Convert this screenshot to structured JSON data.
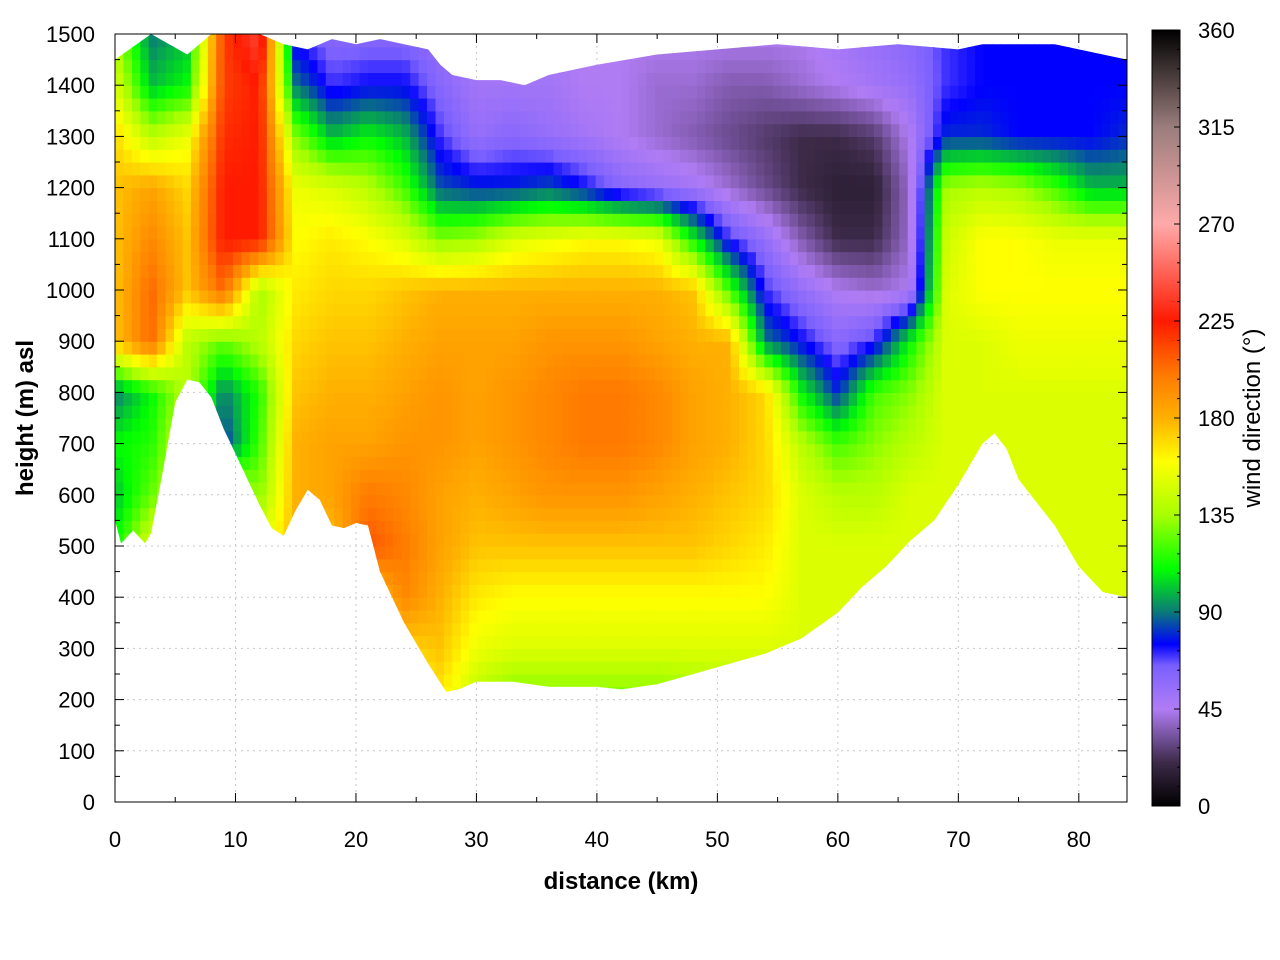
{
  "chart_data": {
    "type": "heatmap",
    "title": "",
    "xlabel": "distance (km)",
    "ylabel": "height (m) asl",
    "colorbar_label": "wind direction (°)",
    "xlim": [
      0,
      84
    ],
    "ylim": [
      0,
      1500
    ],
    "x_ticks": [
      0,
      10,
      20,
      30,
      40,
      50,
      60,
      70,
      80
    ],
    "y_ticks": [
      0,
      100,
      200,
      300,
      400,
      500,
      600,
      700,
      800,
      900,
      1000,
      1100,
      1200,
      1300,
      1400,
      1500
    ],
    "colorbar_range": [
      0,
      360
    ],
    "colorbar_ticks": [
      0,
      45,
      90,
      135,
      180,
      225,
      270,
      315,
      360
    ],
    "grid": true,
    "colormap": [
      [
        0,
        "#000000"
      ],
      [
        20,
        "#3c2a48"
      ],
      [
        45,
        "#b07cf4"
      ],
      [
        65,
        "#7a60ff"
      ],
      [
        75,
        "#0000ff"
      ],
      [
        90,
        "#0a7a78"
      ],
      [
        110,
        "#00ff00"
      ],
      [
        135,
        "#a8ff00"
      ],
      [
        160,
        "#ffff00"
      ],
      [
        180,
        "#ffb000"
      ],
      [
        200,
        "#ff7a00"
      ],
      [
        225,
        "#ff1a00"
      ],
      [
        270,
        "#ffaaaa"
      ],
      [
        315,
        "#9a7d7d"
      ],
      [
        360,
        "#000000"
      ]
    ],
    "terrain": {
      "x": [
        0,
        0.5,
        1.5,
        2.5,
        3,
        4,
        5,
        6,
        7,
        8,
        9,
        10,
        11,
        12,
        13,
        14,
        15,
        16,
        17,
        18,
        19,
        20,
        21,
        22,
        24,
        26,
        27.5,
        28.5,
        30,
        33,
        36,
        40,
        42,
        45,
        48,
        51,
        54,
        57,
        60,
        62,
        64,
        66,
        68,
        70,
        71,
        72,
        73,
        74,
        75,
        76,
        78,
        80,
        82,
        84
      ],
      "y": [
        550,
        505,
        530,
        505,
        525,
        650,
        780,
        825,
        820,
        790,
        730,
        680,
        630,
        580,
        535,
        520,
        570,
        610,
        590,
        540,
        535,
        545,
        540,
        450,
        350,
        270,
        215,
        220,
        235,
        235,
        225,
        225,
        220,
        230,
        250,
        270,
        290,
        320,
        370,
        420,
        460,
        510,
        550,
        620,
        660,
        700,
        720,
        690,
        630,
        600,
        540,
        460,
        410,
        400
      ]
    },
    "top": {
      "x": [
        0,
        3,
        6,
        8,
        12,
        14,
        16,
        18,
        20,
        22,
        24,
        26,
        27,
        28,
        30,
        32,
        34,
        36,
        40,
        45,
        50,
        55,
        60,
        65,
        70,
        72,
        74,
        76,
        78,
        80,
        82,
        84
      ],
      "y": [
        1450,
        1500,
        1460,
        1500,
        1500,
        1480,
        1470,
        1490,
        1480,
        1490,
        1480,
        1470,
        1440,
        1420,
        1410,
        1410,
        1400,
        1420,
        1440,
        1460,
        1470,
        1480,
        1470,
        1480,
        1470,
        1480,
        1480,
        1480,
        1480,
        1470,
        1460,
        1450
      ]
    },
    "direction_field": {
      "x": [
        0,
        3,
        6,
        9,
        12,
        15,
        18,
        21,
        24,
        27,
        30,
        33,
        36,
        39,
        42,
        45,
        48,
        51,
        54,
        57,
        60,
        63,
        66,
        69,
        72,
        75,
        78,
        81,
        84
      ],
      "y": [
        200,
        300,
        400,
        500,
        600,
        700,
        800,
        900,
        1000,
        1100,
        1200,
        1300,
        1400,
        1500
      ],
      "values_deg": [
        [
          150,
          150,
          150,
          150,
          150,
          150,
          150,
          150,
          150,
          165,
          140,
          125,
          125,
          125,
          125,
          125,
          130,
          135,
          140,
          140,
          140,
          145,
          150,
          150,
          150,
          150,
          150,
          150,
          150
        ],
        [
          150,
          150,
          150,
          150,
          150,
          150,
          150,
          150,
          170,
          175,
          155,
          150,
          150,
          150,
          150,
          150,
          150,
          150,
          150,
          150,
          150,
          150,
          150,
          150,
          150,
          150,
          150,
          150,
          150
        ],
        [
          150,
          150,
          150,
          150,
          150,
          150,
          150,
          170,
          195,
          180,
          165,
          160,
          160,
          160,
          160,
          160,
          160,
          160,
          160,
          150,
          150,
          150,
          150,
          150,
          150,
          150,
          150,
          150,
          150
        ],
        [
          110,
          150,
          150,
          150,
          150,
          180,
          175,
          210,
          200,
          185,
          175,
          175,
          175,
          175,
          175,
          175,
          175,
          170,
          165,
          150,
          150,
          150,
          150,
          150,
          150,
          150,
          150,
          150,
          150
        ],
        [
          100,
          125,
          150,
          150,
          130,
          180,
          185,
          200,
          195,
          185,
          180,
          185,
          190,
          190,
          190,
          185,
          180,
          175,
          170,
          150,
          140,
          140,
          150,
          150,
          150,
          150,
          150,
          150,
          150
        ],
        [
          110,
          115,
          150,
          80,
          120,
          180,
          185,
          185,
          190,
          190,
          185,
          190,
          195,
          200,
          200,
          195,
          185,
          180,
          170,
          140,
          120,
          130,
          140,
          150,
          150,
          150,
          150,
          150,
          150
        ],
        [
          90,
          110,
          140,
          90,
          115,
          175,
          180,
          180,
          185,
          190,
          185,
          190,
          195,
          200,
          200,
          195,
          185,
          180,
          170,
          110,
          80,
          120,
          130,
          150,
          150,
          150,
          150,
          150,
          150
        ],
        [
          175,
          205,
          140,
          125,
          140,
          170,
          175,
          175,
          180,
          185,
          185,
          185,
          190,
          190,
          190,
          185,
          180,
          180,
          90,
          75,
          60,
          70,
          110,
          150,
          150,
          155,
          155,
          155,
          155
        ],
        [
          175,
          205,
          175,
          205,
          135,
          165,
          170,
          170,
          175,
          180,
          180,
          180,
          180,
          180,
          180,
          180,
          175,
          120,
          70,
          55,
          45,
          40,
          45,
          150,
          160,
          160,
          160,
          160,
          160
        ],
        [
          175,
          195,
          175,
          225,
          225,
          160,
          165,
          160,
          150,
          130,
          135,
          150,
          155,
          160,
          160,
          155,
          110,
          70,
          55,
          35,
          20,
          20,
          40,
          145,
          160,
          160,
          155,
          155,
          155
        ],
        [
          175,
          185,
          170,
          225,
          225,
          155,
          150,
          140,
          120,
          85,
          80,
          80,
          85,
          75,
          60,
          55,
          50,
          40,
          30,
          20,
          15,
          15,
          40,
          135,
          140,
          135,
          120,
          100,
          100
        ],
        [
          170,
          140,
          155,
          220,
          225,
          130,
          100,
          110,
          100,
          70,
          55,
          60,
          55,
          50,
          45,
          40,
          35,
          30,
          25,
          20,
          20,
          25,
          45,
          80,
          80,
          75,
          75,
          75,
          80
        ],
        [
          150,
          100,
          110,
          215,
          225,
          90,
          70,
          75,
          75,
          60,
          50,
          50,
          50,
          45,
          45,
          40,
          40,
          35,
          35,
          40,
          45,
          50,
          55,
          70,
          75,
          75,
          75,
          75,
          75
        ],
        [
          135,
          90,
          100,
          215,
          240,
          70,
          60,
          60,
          60,
          55,
          50,
          50,
          50,
          45,
          45,
          45,
          45,
          45,
          45,
          45,
          50,
          55,
          60,
          70,
          75,
          75,
          75,
          75,
          75
        ]
      ]
    }
  }
}
